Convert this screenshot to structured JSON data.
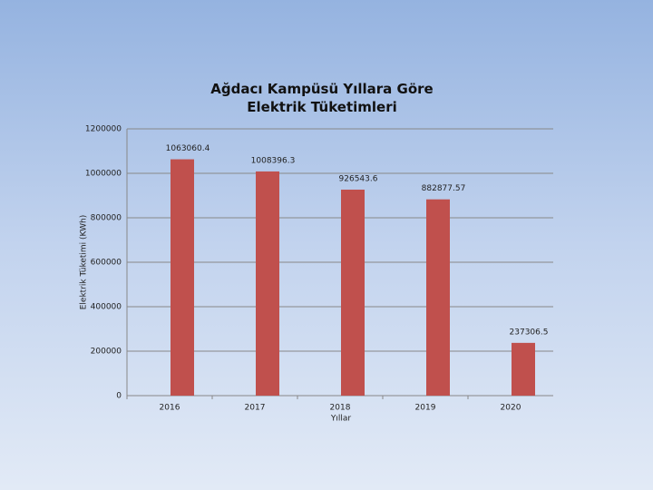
{
  "chart_data": {
    "type": "bar",
    "title": "Ağdacı Kampüsü Yıllara Göre Elektrik Tüketimleri",
    "x_label": "Yıllar",
    "y_label": "Elektrik Tüketimi (KWh)",
    "categories": [
      "2016",
      "2017",
      "2018",
      "2019",
      "2020"
    ],
    "values": [
      1063060.4,
      1008396.3,
      926543.6,
      882877.57,
      237306.5
    ],
    "color": "#c0504d",
    "ylim": [
      0,
      1200000
    ],
    "yticks": [
      0,
      200000,
      400000,
      600000,
      800000,
      1000000,
      1200000
    ],
    "grid": true
  }
}
